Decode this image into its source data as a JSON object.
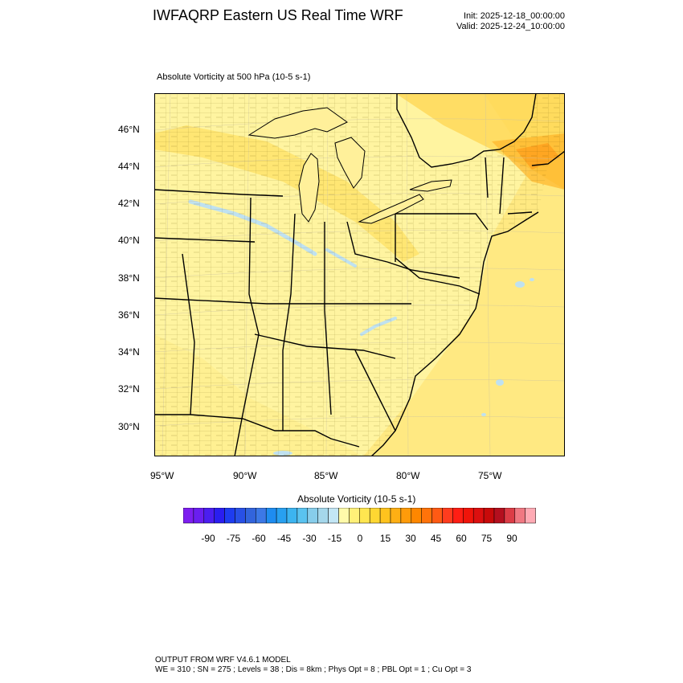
{
  "header": {
    "title": "IWFAQRP Eastern US Real Time WRF",
    "init": "Init: 2025-12-18_00:00:00",
    "valid": "Valid: 2025-12-24_10:00:00"
  },
  "panel": {
    "field_title": "Absolute Vorticity at 500 hPa   (10-5 s-1)"
  },
  "axes": {
    "lat_labels": [
      "46°N",
      "44°N",
      "42°N",
      "40°N",
      "38°N",
      "36°N",
      "34°N",
      "32°N",
      "30°N"
    ],
    "lon_labels": [
      "95°W",
      "90°W",
      "85°W",
      "80°W",
      "75°W"
    ]
  },
  "colorbar": {
    "title": "Absolute Vorticity  (10-5 s-1)",
    "tick_labels": [
      "-90",
      "-75",
      "-60",
      "-45",
      "-30",
      "-15",
      "0",
      "15",
      "30",
      "45",
      "60",
      "75",
      "90"
    ],
    "colors": [
      "#7d1ef0",
      "#6a1ef0",
      "#4b1ef0",
      "#2a1ef0",
      "#1e3cf0",
      "#2850e6",
      "#3264dc",
      "#3c78e6",
      "#1e8cf0",
      "#28a0f0",
      "#3cb4f0",
      "#5ac3f0",
      "#87cdeb",
      "#a5d7eb",
      "#c3e6f5",
      "#fffaaa",
      "#fff078",
      "#ffe650",
      "#ffd732",
      "#ffc31e",
      "#ffaf14",
      "#ff9b0a",
      "#ff8700",
      "#ff730a",
      "#ff5a14",
      "#ff3c1e",
      "#ff1e14",
      "#f0140a",
      "#dc0f0f",
      "#c80a0a",
      "#b40f1e",
      "#dc3c46",
      "#f07882",
      "#ffaab4"
    ]
  },
  "footer": {
    "line1": "OUTPUT FROM WRF V4.6.1 MODEL",
    "line2": "WE = 310 ; SN = 275 ; Levels = 38 ; Dis = 8km ; Phys Opt = 8 ; PBL Opt = 1 ; Cu Opt = 3"
  }
}
